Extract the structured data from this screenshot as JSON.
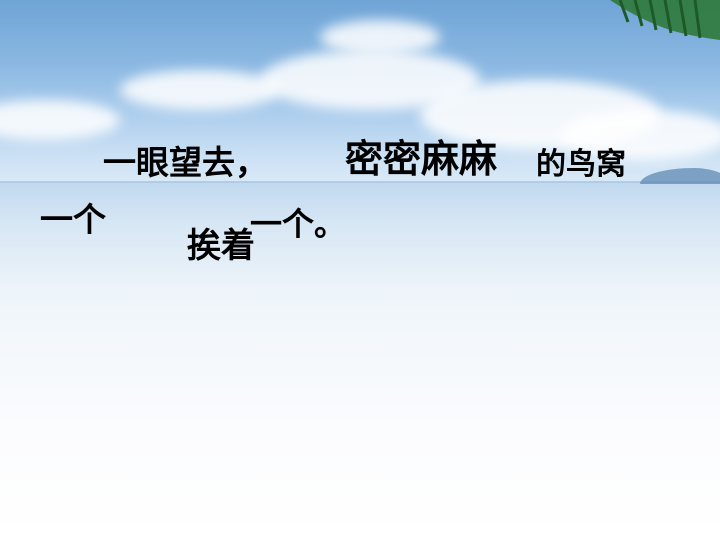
{
  "slide": {
    "lines": [
      "一眼望去，",
      "密密麻麻",
      "的鸟窝",
      "一个",
      "挨着",
      "一个。"
    ]
  },
  "icons": {
    "palm": "palm-leaf-icon"
  },
  "colors": {
    "text": "#000000",
    "sky_top": "#6fa4d6",
    "sky_bottom": "#ffffff"
  }
}
